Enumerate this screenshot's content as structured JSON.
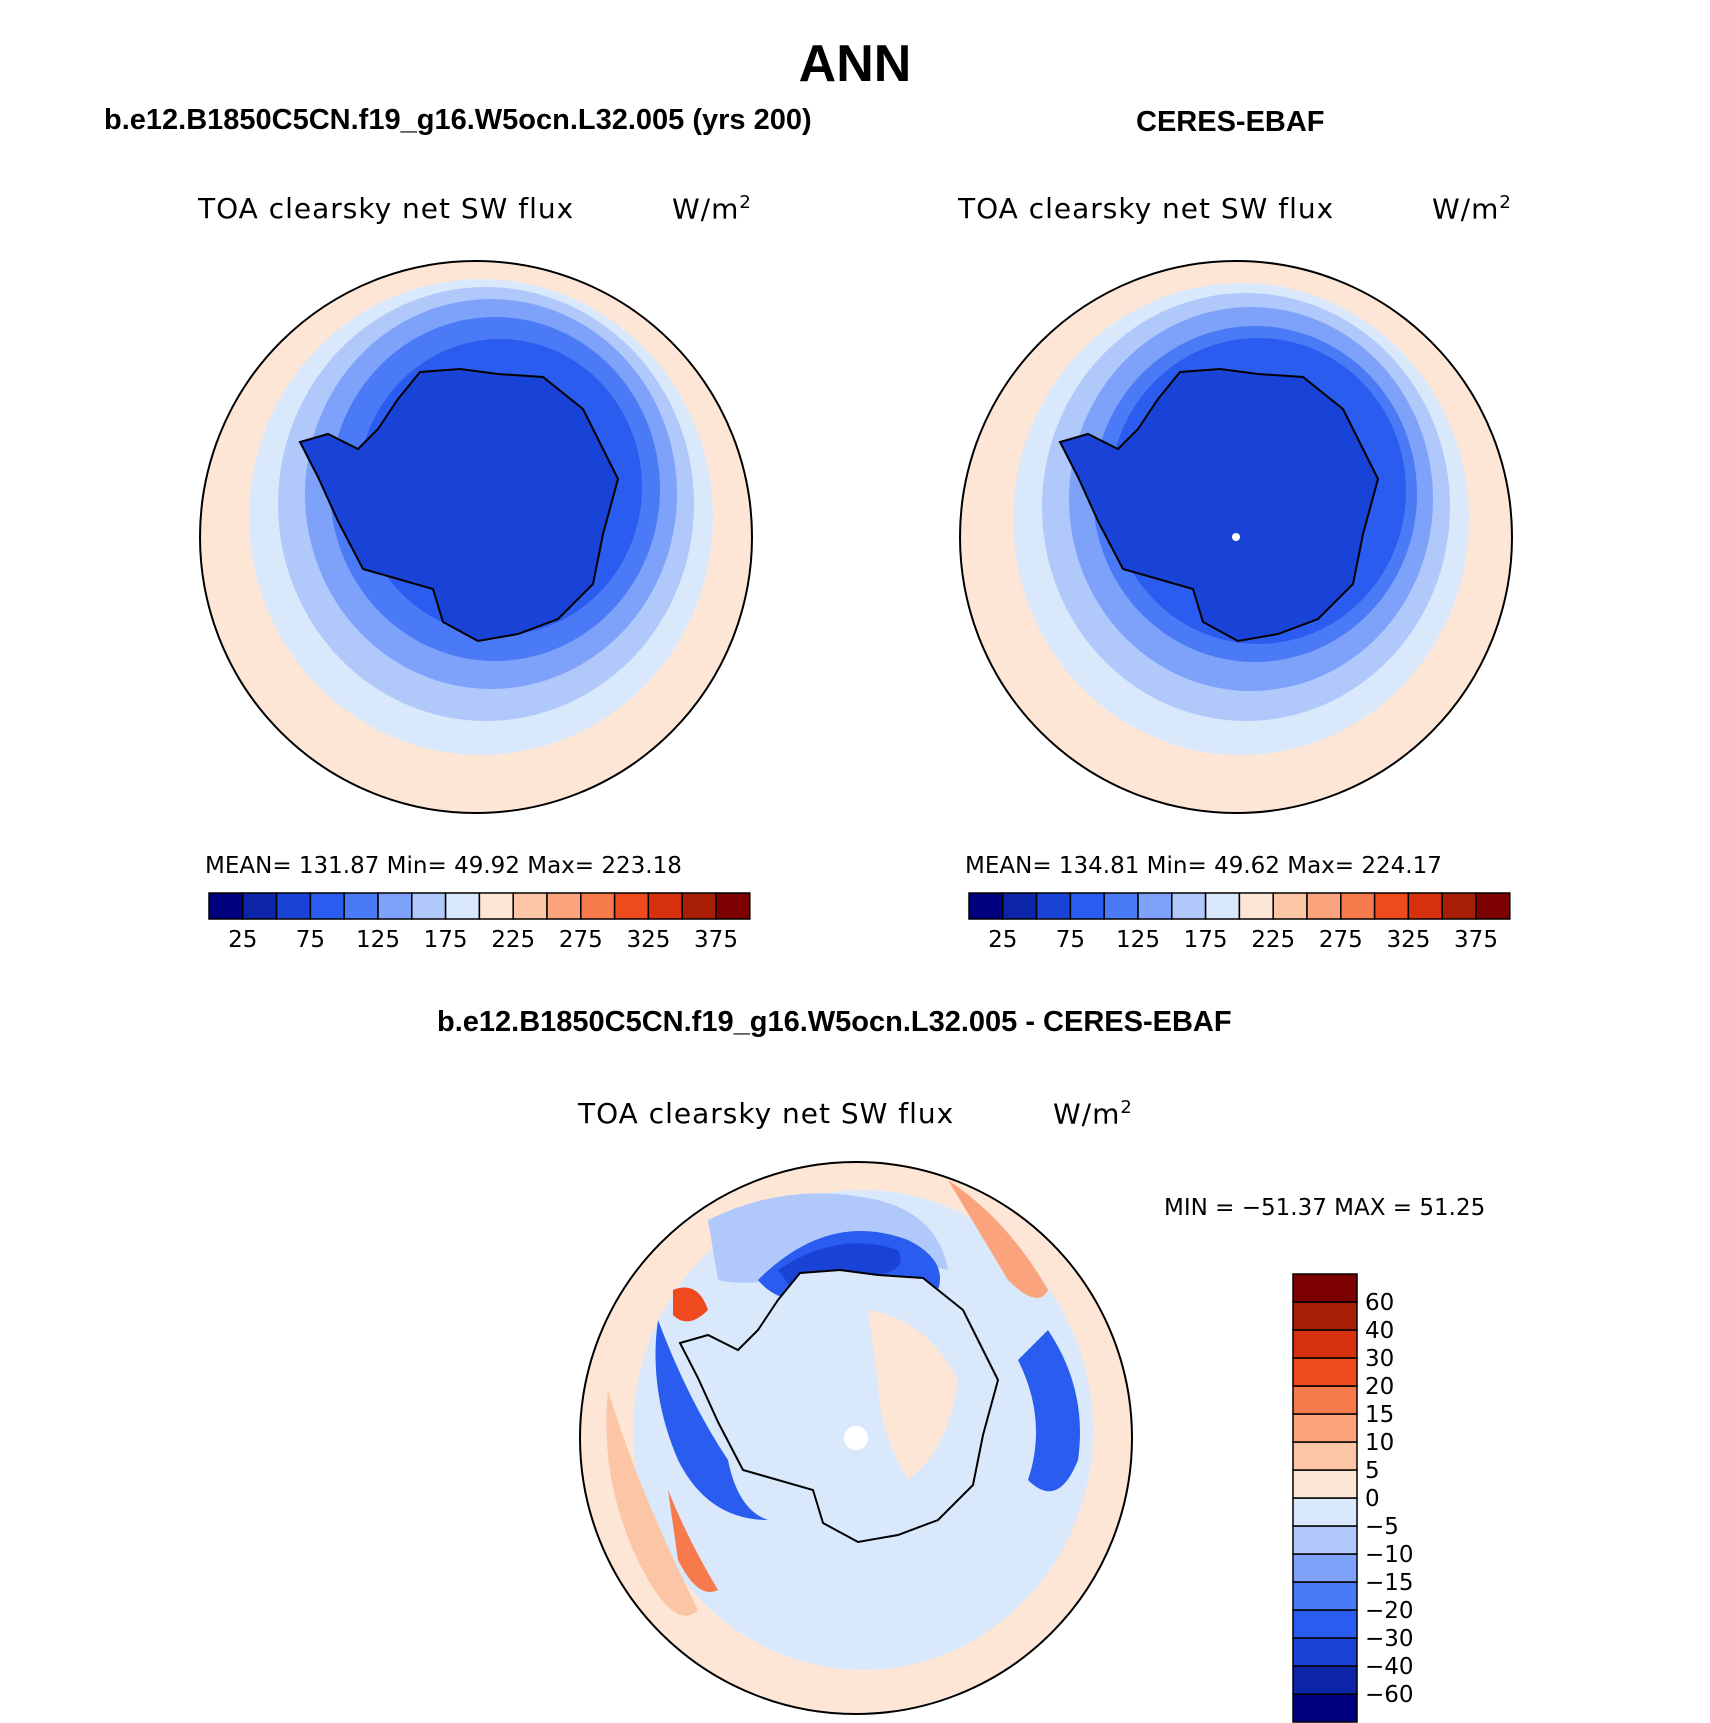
{
  "season": "ANN",
  "panels": [
    {
      "title": "b.e12.B1850C5CN.f19_g16.W5ocn.L32.005 (yrs 200)",
      "variable": "TOA clearsky net SW flux",
      "units": "W/m",
      "units_sup": "2",
      "stats_text": "MEAN= 131.87   Min=   49.92   Max= 223.18"
    },
    {
      "title": "CERES-EBAF",
      "variable": "TOA clearsky net SW flux",
      "units": "W/m",
      "units_sup": "2",
      "stats_text": "MEAN= 134.81   Min=   49.62   Max= 224.17"
    },
    {
      "title": "b.e12.B1850C5CN.f19_g16.W5ocn.L32.005 - CERES-EBAF",
      "variable": "TOA clearsky net SW flux",
      "units": "W/m",
      "units_sup": "2",
      "stats_text": "MIN = −51.37 MAX =   51.25"
    }
  ],
  "colorbar_abs": {
    "colors": [
      "#00007f",
      "#0b24a8",
      "#1843d6",
      "#2a5cf0",
      "#4a7af5",
      "#7ea2fa",
      "#b1c8fb",
      "#d9e9fb",
      "#fde6d6",
      "#fcc5a6",
      "#fba37d",
      "#f77a4c",
      "#ef4a1e",
      "#d7300c",
      "#a71d05",
      "#7d0000"
    ],
    "labels": [
      "25",
      "75",
      "125",
      "175",
      "225",
      "275",
      "325",
      "375"
    ]
  },
  "colorbar_diff": {
    "colors": [
      "#00007f",
      "#0b24a8",
      "#1843d6",
      "#2a5cf0",
      "#4a7af5",
      "#7ea2fa",
      "#b1c8fb",
      "#d9e9fb",
      "#fde6d6",
      "#fcc5a6",
      "#fba37d",
      "#f77a4c",
      "#ef4a1e",
      "#d7300c",
      "#a71d05",
      "#7d0000"
    ],
    "labels": [
      "60",
      "40",
      "30",
      "20",
      "15",
      "10",
      "5",
      "0",
      "−5",
      "−10",
      "−15",
      "−20",
      "−30",
      "−40",
      "−60"
    ]
  }
}
